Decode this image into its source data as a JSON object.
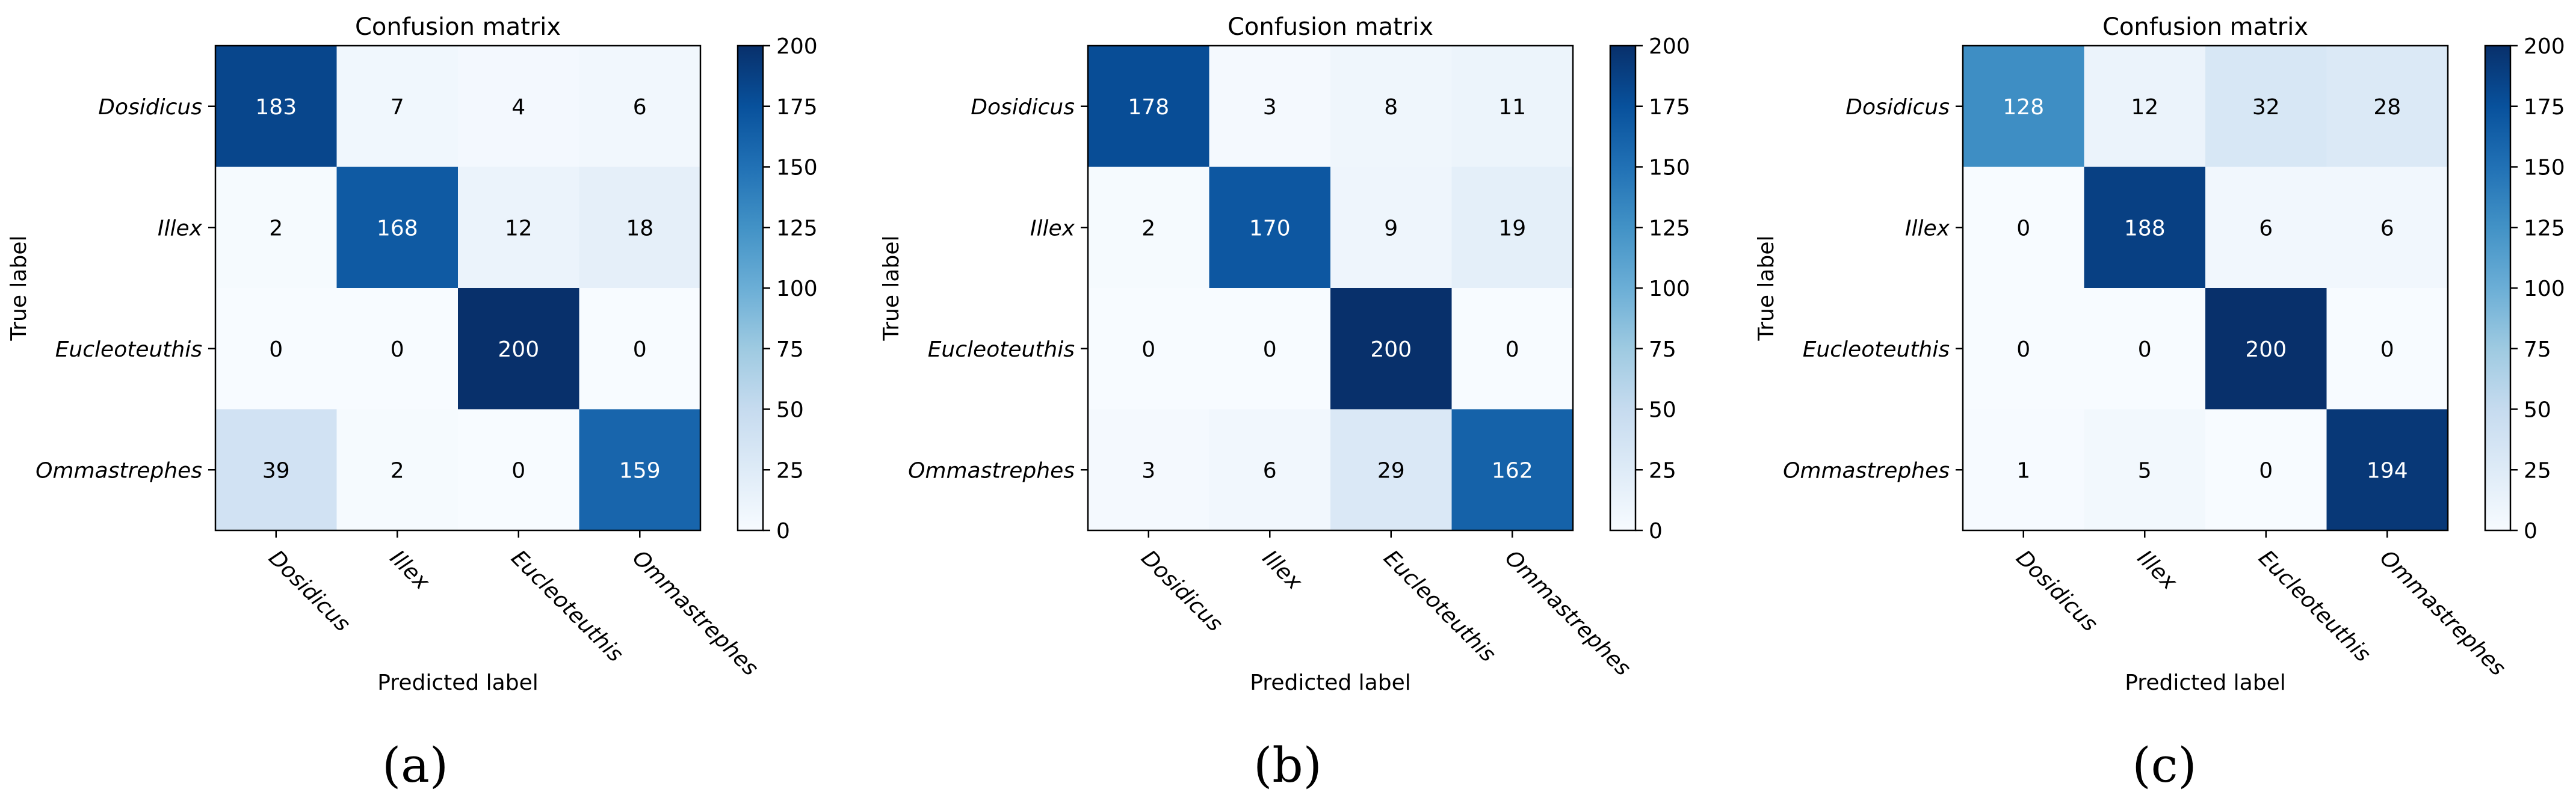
{
  "chart_data": [
    {
      "type": "heatmap",
      "title": "Confusion matrix",
      "xlabel": "Predicted label",
      "ylabel": "True label",
      "classes": [
        "Dosidicus",
        "Illex",
        "Eucleoteuthis",
        "Ommastrephes"
      ],
      "values": [
        [
          183,
          7,
          4,
          6
        ],
        [
          2,
          168,
          12,
          18
        ],
        [
          0,
          0,
          200,
          0
        ],
        [
          39,
          2,
          0,
          159
        ]
      ],
      "colorbar": {
        "min": 0,
        "max": 200,
        "ticks": [
          "0",
          "25",
          "50",
          "75",
          "100",
          "125",
          "150",
          "175",
          "200"
        ]
      },
      "caption": "(a)"
    },
    {
      "type": "heatmap",
      "title": "Confusion matrix",
      "xlabel": "Predicted label",
      "ylabel": "True label",
      "classes": [
        "Dosidicus",
        "Illex",
        "Eucleoteuthis",
        "Ommastrephes"
      ],
      "values": [
        [
          178,
          3,
          8,
          11
        ],
        [
          2,
          170,
          9,
          19
        ],
        [
          0,
          0,
          200,
          0
        ],
        [
          3,
          6,
          29,
          162
        ]
      ],
      "colorbar": {
        "min": 0,
        "max": 200,
        "ticks": [
          "0",
          "25",
          "50",
          "75",
          "100",
          "125",
          "150",
          "175",
          "200"
        ]
      },
      "caption": "(b)"
    },
    {
      "type": "heatmap",
      "title": "Confusion matrix",
      "xlabel": "Predicted label",
      "ylabel": "True label",
      "classes": [
        "Dosidicus",
        "Illex",
        "Eucleoteuthis",
        "Ommastrephes"
      ],
      "values": [
        [
          128,
          12,
          32,
          28
        ],
        [
          0,
          188,
          6,
          6
        ],
        [
          0,
          0,
          200,
          0
        ],
        [
          1,
          5,
          0,
          194
        ]
      ],
      "colorbar": {
        "min": 0,
        "max": 200,
        "ticks": [
          "0",
          "25",
          "50",
          "75",
          "100",
          "125",
          "150",
          "175",
          "200"
        ]
      },
      "caption": "(c)"
    }
  ]
}
